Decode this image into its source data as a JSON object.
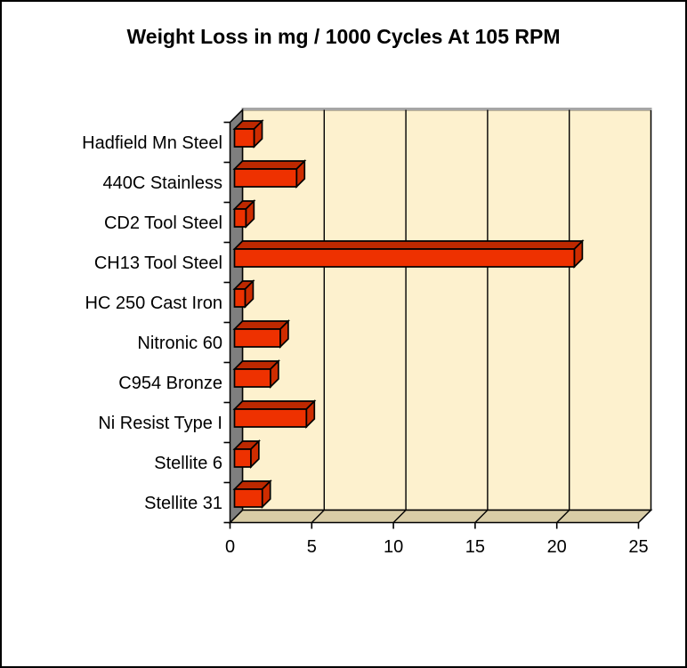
{
  "chart_data": {
    "type": "bar",
    "orientation": "horizontal",
    "style": "3d-excel",
    "title": "Weight Loss in mg / 1000 Cycles At 105 RPM",
    "categories": [
      "Hadfield Mn Steel",
      "440C Stainless",
      "CD2 Tool Steel",
      "CH13 Tool Steel",
      "HC 250 Cast Iron",
      "Nitronic 60",
      "C954 Bronze",
      "Ni Resist Type I",
      "Stellite 6",
      "Stellite 31"
    ],
    "values": [
      1.2,
      3.8,
      0.7,
      20.8,
      0.65,
      2.8,
      2.2,
      4.4,
      1.0,
      1.7
    ],
    "x_ticks": [
      "0",
      "5",
      "10",
      "15",
      "20",
      "25"
    ],
    "x_tick_values": [
      0,
      5,
      10,
      15,
      20,
      25
    ],
    "xlim": [
      0,
      25
    ],
    "xlabel": "",
    "ylabel": "",
    "grid": true,
    "legend": "none",
    "colors": {
      "bar_front": "#EE3100",
      "bar_top": "#BD2800",
      "bar_side": "#CE2C00",
      "bar_outline": "#000000",
      "plot_background": "#FDF1CE",
      "floor": "#D8CCA6",
      "side_wall": "#7F7F7F",
      "wall_top_edge": "#A6A6A6",
      "gridline": "#000000",
      "axis": "#000000",
      "text": "#000000",
      "frame_border": "#000000",
      "page_background": "#FFFFFF"
    }
  }
}
